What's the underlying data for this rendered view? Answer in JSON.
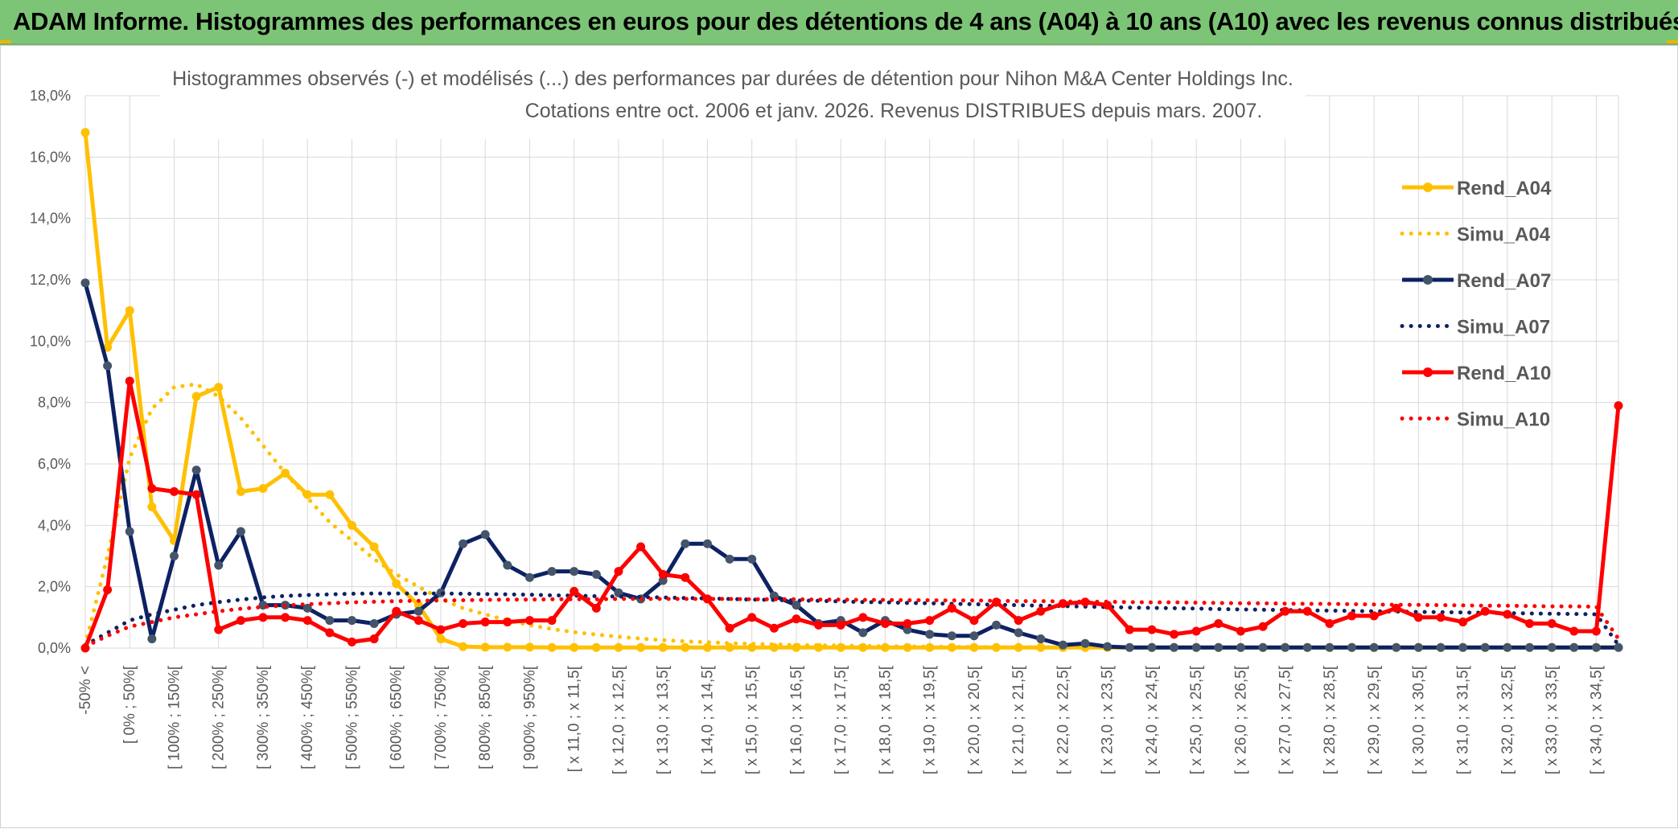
{
  "header": {
    "title": "ADAM Informe. Histogrammes des performances en euros pour des détentions de 4 ans (A04) à 10 ans (A10) avec les revenus connus distribués"
  },
  "chart_data": {
    "type": "line",
    "title_line1": "Histogrammes observés (-) et modélisés (...) des performances par durées de détention pour Nihon M&A Center Holdings Inc.",
    "title_line2": "Cotations entre oct. 2006 et janv. 2026. Revenus DISTRIBUES depuis mars. 2007.",
    "ylim": [
      0,
      18
    ],
    "y_ticks": [
      "0,0%",
      "2,0%",
      "4,0%",
      "6,0%",
      "8,0%",
      "10,0%",
      "12,0%",
      "14,0%",
      "16,0%",
      "18,0%"
    ],
    "x_count": 70,
    "x_labels": [
      {
        "i": 0,
        "label": "-50% <"
      },
      {
        "i": 2,
        "label": "[ 0% ; 50%["
      },
      {
        "i": 4,
        "label": "[ 100% ; 150%["
      },
      {
        "i": 6,
        "label": "[ 200% ; 250%["
      },
      {
        "i": 8,
        "label": "[ 300% ; 350%["
      },
      {
        "i": 10,
        "label": "[ 400% ; 450%["
      },
      {
        "i": 12,
        "label": "[ 500% ; 550%["
      },
      {
        "i": 14,
        "label": "[ 600% ; 650%["
      },
      {
        "i": 16,
        "label": "[ 700% ; 750%["
      },
      {
        "i": 18,
        "label": "[ 800% ; 850%["
      },
      {
        "i": 20,
        "label": "[ 900% ; 950%["
      },
      {
        "i": 22,
        "label": "[ x 11,0 ; x 11,5["
      },
      {
        "i": 24,
        "label": "[ x 12,0 ; x 12,5["
      },
      {
        "i": 26,
        "label": "[ x 13,0 ; x 13,5["
      },
      {
        "i": 28,
        "label": "[ x 14,0 ; x 14,5["
      },
      {
        "i": 30,
        "label": "[ x 15,0 ; x 15,5["
      },
      {
        "i": 32,
        "label": "[ x 16,0 ; x 16,5["
      },
      {
        "i": 34,
        "label": "[ x 17,0 ; x 17,5["
      },
      {
        "i": 36,
        "label": "[ x 18,0 ; x 18,5["
      },
      {
        "i": 38,
        "label": "[ x 19,0 ; x 19,5["
      },
      {
        "i": 40,
        "label": "[ x 20,0 ; x 20,5["
      },
      {
        "i": 42,
        "label": "[ x 21,0 ; x 21,5["
      },
      {
        "i": 44,
        "label": "[ x 22,0 ; x 22,5["
      },
      {
        "i": 46,
        "label": "[ x 23,0 ; x 23,5["
      },
      {
        "i": 48,
        "label": "[ x 24,0 ; x 24,5["
      },
      {
        "i": 50,
        "label": "[ x 25,0 ; x 25,5["
      },
      {
        "i": 52,
        "label": "[ x 26,0 ; x 26,5["
      },
      {
        "i": 54,
        "label": "[ x 27,0 ; x 27,5["
      },
      {
        "i": 56,
        "label": "[ x 28,0 ; x 28,5["
      },
      {
        "i": 58,
        "label": "[ x 29,0 ; x 29,5["
      },
      {
        "i": 60,
        "label": "[ x 30,0 ; x 30,5["
      },
      {
        "i": 62,
        "label": "[ x 31,0 ; x 31,5["
      },
      {
        "i": 64,
        "label": "[ x 32,0 ; x 32,5["
      },
      {
        "i": 66,
        "label": "[ x 33,0 ; x 33,5["
      },
      {
        "i": 68,
        "label": "[ x 34,0 ; x 34,5["
      }
    ],
    "series": [
      {
        "name": "Rend_A04",
        "color": "#ffc000",
        "style": "solid",
        "values": [
          16.8,
          9.8,
          11.0,
          4.6,
          3.5,
          8.2,
          8.5,
          5.1,
          5.2,
          5.7,
          5.0,
          5.0,
          4.0,
          3.3,
          2.1,
          1.4,
          0.3,
          0.05,
          0.03,
          0.03,
          0.03,
          0.02,
          0.02,
          0.02,
          0.02,
          0.02,
          0.02,
          0.02,
          0.02,
          0.02,
          0.02,
          0.02,
          0.02,
          0.02,
          0.02,
          0.02,
          0.02,
          0.02,
          0.02,
          0.02,
          0.02,
          0.02,
          0.02,
          0.02,
          0.02,
          0.02,
          0.02,
          0.02,
          0.02,
          0.02,
          0.02,
          0.02,
          0.02,
          0.02,
          0.02,
          0.02,
          0.02,
          0.02,
          0.02,
          0.02,
          0.02,
          0.02,
          0.02,
          0.02,
          0.02,
          0.02,
          0.02,
          0.02,
          0.02,
          0.02
        ]
      },
      {
        "name": "Simu_A04",
        "color": "#ffc000",
        "style": "dotted",
        "values": [
          0.1,
          3.0,
          6.2,
          7.8,
          8.5,
          8.6,
          8.2,
          7.5,
          6.6,
          5.7,
          4.9,
          4.1,
          3.5,
          2.9,
          2.4,
          2.0,
          1.6,
          1.3,
          1.1,
          0.9,
          0.75,
          0.62,
          0.52,
          0.44,
          0.37,
          0.31,
          0.26,
          0.22,
          0.19,
          0.16,
          0.14,
          0.12,
          0.1,
          0.09,
          0.08,
          0.07,
          0.06,
          0.05,
          0.05,
          0.04,
          0.04,
          0.03,
          0.03,
          0.03,
          0.03,
          0.02,
          0.02,
          0.02,
          0.02,
          0.02,
          0.02,
          0.02,
          0.02,
          0.02,
          0.02,
          0.02,
          0.02,
          0.02,
          0.02,
          0.02,
          0.02,
          0.02,
          0.02,
          0.02,
          0.02,
          0.02,
          0.02,
          0.02,
          0.02,
          0.02
        ]
      },
      {
        "name": "Rend_A07",
        "color": "#0d2263",
        "style": "solid",
        "values": [
          11.9,
          9.2,
          3.8,
          0.3,
          3.0,
          5.8,
          2.7,
          3.8,
          1.4,
          1.4,
          1.3,
          0.9,
          0.9,
          0.8,
          1.1,
          1.2,
          1.8,
          3.4,
          3.7,
          2.7,
          2.3,
          2.5,
          2.5,
          2.4,
          1.8,
          1.6,
          2.2,
          3.4,
          3.4,
          2.9,
          2.9,
          1.7,
          1.4,
          0.8,
          0.9,
          0.5,
          0.9,
          0.6,
          0.45,
          0.4,
          0.4,
          0.75,
          0.5,
          0.3,
          0.1,
          0.15,
          0.05,
          0.02,
          0.02,
          0.02,
          0.02,
          0.02,
          0.02,
          0.02,
          0.02,
          0.02,
          0.02,
          0.02,
          0.02,
          0.02,
          0.02,
          0.02,
          0.02,
          0.02,
          0.02,
          0.02,
          0.02,
          0.02,
          0.02,
          0.02
        ]
      },
      {
        "name": "Simu_A07",
        "color": "#0d2263",
        "style": "dotted",
        "values": [
          0.1,
          0.5,
          0.9,
          1.1,
          1.25,
          1.4,
          1.5,
          1.58,
          1.65,
          1.7,
          1.73,
          1.75,
          1.77,
          1.78,
          1.78,
          1.78,
          1.78,
          1.77,
          1.76,
          1.75,
          1.74,
          1.72,
          1.71,
          1.69,
          1.68,
          1.66,
          1.65,
          1.63,
          1.62,
          1.6,
          1.58,
          1.57,
          1.55,
          1.54,
          1.52,
          1.5,
          1.49,
          1.47,
          1.46,
          1.44,
          1.43,
          1.41,
          1.4,
          1.38,
          1.37,
          1.35,
          1.34,
          1.32,
          1.31,
          1.3,
          1.29,
          1.27,
          1.26,
          1.25,
          1.24,
          1.23,
          1.22,
          1.21,
          1.2,
          1.19,
          1.18,
          1.17,
          1.16,
          1.15,
          1.14,
          1.13,
          1.12,
          1.11,
          1.1,
          0.1
        ]
      },
      {
        "name": "Rend_A10",
        "color": "#ff0000",
        "style": "solid",
        "values": [
          0.0,
          1.9,
          8.7,
          5.2,
          5.1,
          5.0,
          0.6,
          0.9,
          1.0,
          1.0,
          0.9,
          0.5,
          0.2,
          0.3,
          1.2,
          0.9,
          0.6,
          0.8,
          0.85,
          0.85,
          0.9,
          0.9,
          1.85,
          1.3,
          2.5,
          3.3,
          2.4,
          2.3,
          1.6,
          0.65,
          1.0,
          0.65,
          0.95,
          0.75,
          0.75,
          1.0,
          0.8,
          0.8,
          0.9,
          1.3,
          0.9,
          1.5,
          0.9,
          1.2,
          1.45,
          1.5,
          1.4,
          0.6,
          0.6,
          0.45,
          0.55,
          0.8,
          0.55,
          0.7,
          1.2,
          1.2,
          0.8,
          1.05,
          1.05,
          1.3,
          1.0,
          1.0,
          0.85,
          1.2,
          1.1,
          0.8,
          0.8,
          0.55,
          0.55,
          7.9
        ]
      },
      {
        "name": "Simu_A10",
        "color": "#ff0000",
        "style": "dotted",
        "values": [
          0.05,
          0.4,
          0.7,
          0.85,
          1.0,
          1.1,
          1.2,
          1.28,
          1.34,
          1.39,
          1.43,
          1.46,
          1.49,
          1.51,
          1.53,
          1.54,
          1.55,
          1.56,
          1.57,
          1.58,
          1.58,
          1.59,
          1.59,
          1.59,
          1.6,
          1.6,
          1.6,
          1.6,
          1.6,
          1.6,
          1.59,
          1.59,
          1.59,
          1.58,
          1.58,
          1.57,
          1.57,
          1.56,
          1.56,
          1.55,
          1.55,
          1.54,
          1.53,
          1.53,
          1.52,
          1.51,
          1.51,
          1.5,
          1.49,
          1.49,
          1.48,
          1.47,
          1.46,
          1.46,
          1.45,
          1.44,
          1.44,
          1.43,
          1.42,
          1.41,
          1.41,
          1.4,
          1.39,
          1.38,
          1.38,
          1.37,
          1.36,
          1.36,
          1.35,
          0.3
        ]
      }
    ]
  }
}
